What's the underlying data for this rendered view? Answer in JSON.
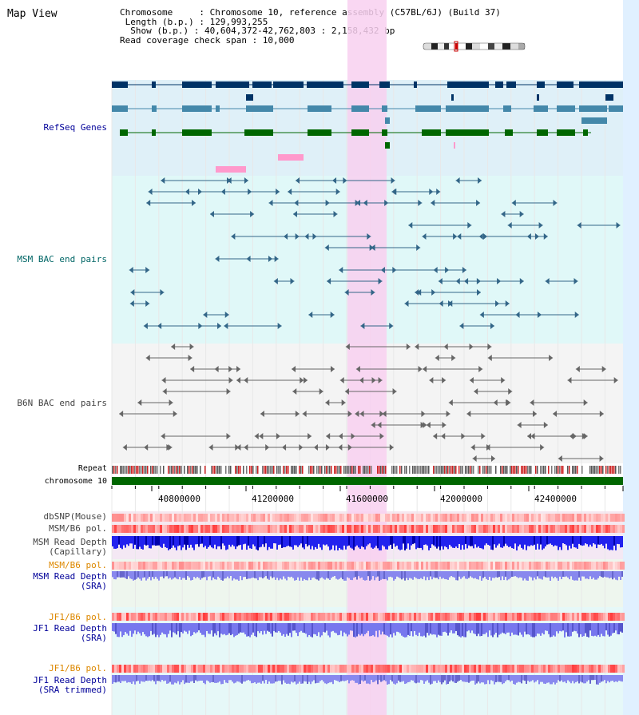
{
  "header": {
    "title": "Map View",
    "info_lines": [
      "Chromosome     : Chromosome 10, reference assembly (C57BL/6J) (Build 37)",
      " Length (b.p.) : 129,993,255",
      "  Show (b.p.) : 40,604,372-42,762,803 : 2,158,432 bp",
      "Read coverage check span : 10,000"
    ]
  },
  "tracks": {
    "refseq": "RefSeq Genes",
    "msm_bac": "MSM BAC end pairs",
    "b6n_bac": "B6N BAC end pairs",
    "repeat": "Repeat",
    "chromosome": "chromosome 10",
    "dbsnp": "dbSNP(Mouse)",
    "msm_b6_pol": "MSM/B6 pol.",
    "msm_depth_cap": "MSM Read Depth",
    "msm_depth_cap_sub": "(Capillary)",
    "msm_b6_pol2": "MSM/B6 pol.",
    "msm_depth_sra": "MSM Read Depth",
    "msm_depth_sra_sub": "(SRA)",
    "jf1_pol": "JF1/B6 pol.",
    "jf1_depth": "JF1 Read Depth",
    "jf1_depth_sub": "(SRA)",
    "jf1_pol2": "JF1/B6 pol.",
    "jf1_depth_trim": "JF1 Read Depth",
    "jf1_depth_trim_sub": "(SRA trimmed)"
  },
  "axis": {
    "ticks": [
      "40800000",
      "41200000",
      "41600000",
      "42000000",
      "42400000"
    ]
  },
  "colors": {
    "refseq_bg": "#dff0f8",
    "msm_bg": "#e0f8f8",
    "b6n_bg": "#f4f4f4",
    "highlight": "#f8d0f0",
    "chromosome_bar": "#006600",
    "dark_blue": "#003366",
    "mid_blue": "#4488aa",
    "green": "#006600",
    "pink": "#ff99cc",
    "msm_line": "#336688",
    "b6n_line": "#666666",
    "label_blue": "#000099",
    "label_teal": "#006666",
    "label_gray": "#444444",
    "label_orange": "#dd8800"
  }
}
